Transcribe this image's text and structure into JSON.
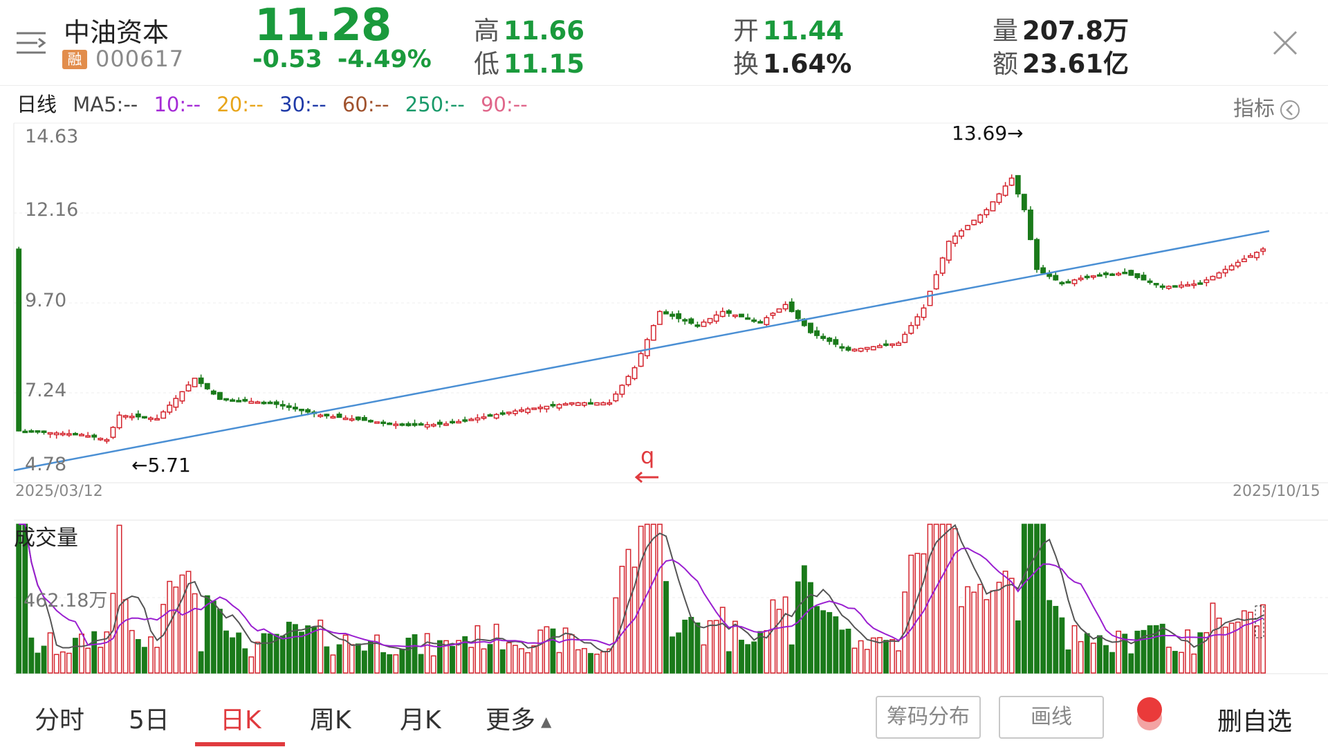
{
  "header": {
    "stock_name": "中油资本",
    "margin_badge": "融",
    "stock_code": "000617",
    "price": "11.28",
    "change": "-0.53",
    "change_pct": "-4.49%",
    "high_label": "高",
    "high_value": "11.66",
    "low_label": "低",
    "low_value": "11.15",
    "open_label": "开",
    "open_value": "11.44",
    "turnover_label": "换",
    "turnover_value": "1.64%",
    "volume_label": "量",
    "volume_value": "207.8万",
    "amount_label": "额",
    "amount_value": "23.61亿"
  },
  "ma_legend": {
    "period": "日线",
    "ma5": "MA5:--",
    "ma10": "10:--",
    "ma20": "20:--",
    "ma30": "30:--",
    "ma60": "60:--",
    "ma250": "250:--",
    "ma90": "90:--",
    "colors": {
      "ma5": "#444444",
      "ma10": "#a52bd6",
      "ma20": "#e8a51a",
      "ma30": "#1f3aa8",
      "ma60": "#a0522d",
      "ma250": "#1a9a6a",
      "ma90": "#e0668a"
    }
  },
  "indicator_button": "指标",
  "chart": {
    "y_labels": [
      "14.63",
      "12.16",
      "9.70",
      "7.24",
      "4.78"
    ],
    "start_date": "2025/03/12",
    "end_date": "2025/10/15",
    "max_annotation": "13.69→",
    "min_annotation": "←5.71",
    "marker_text": "q",
    "up_color": "#d4242d",
    "down_color": "#1a7a1a",
    "trendline_color": "#4a8fd4"
  },
  "volume": {
    "title": "成交量",
    "label": "462.18万"
  },
  "tabs": [
    "分时",
    "5日",
    "日K",
    "周K",
    "月K",
    "更多"
  ],
  "active_tab": "日K",
  "buttons": {
    "chips": "筹码分布",
    "draw": "画线",
    "delete_fav": "删自选"
  }
}
